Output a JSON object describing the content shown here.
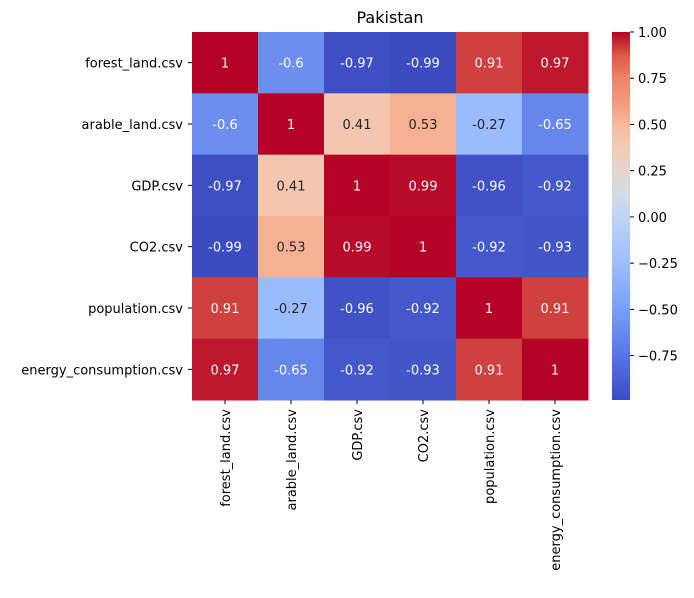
{
  "chart_data": {
    "type": "heatmap",
    "title": "Pakistan",
    "rows": [
      "forest_land.csv",
      "arable_land.csv",
      "GDP.csv",
      "CO2.csv",
      "population.csv",
      "energy_consumption.csv"
    ],
    "columns": [
      "forest_land.csv",
      "arable_land.csv",
      "GDP.csv",
      "CO2.csv",
      "population.csv",
      "energy_consumption.csv"
    ],
    "values": [
      [
        1,
        -0.6,
        -0.97,
        -0.99,
        0.91,
        0.97
      ],
      [
        -0.6,
        1,
        0.41,
        0.53,
        -0.27,
        -0.65
      ],
      [
        -0.97,
        0.41,
        1,
        0.99,
        -0.96,
        -0.92
      ],
      [
        -0.99,
        0.53,
        0.99,
        1,
        -0.92,
        -0.93
      ],
      [
        0.91,
        -0.27,
        -0.96,
        -0.92,
        1,
        0.91
      ],
      [
        0.97,
        -0.65,
        -0.92,
        -0.93,
        0.91,
        1
      ]
    ],
    "annotations": [
      [
        "1",
        "-0.6",
        "-0.97",
        "-0.99",
        "0.91",
        "0.97"
      ],
      [
        "-0.6",
        "1",
        "0.41",
        "0.53",
        "-0.27",
        "-0.65"
      ],
      [
        "-0.97",
        "0.41",
        "1",
        "0.99",
        "-0.96",
        "-0.92"
      ],
      [
        "-0.99",
        "0.53",
        "0.99",
        "1",
        "-0.92",
        "-0.93"
      ],
      [
        "0.91",
        "-0.27",
        "-0.96",
        "-0.92",
        "1",
        "0.91"
      ],
      [
        "0.97",
        "-0.65",
        "-0.92",
        "-0.93",
        "0.91",
        "1"
      ]
    ],
    "colormap": "coolwarm",
    "colorbar": {
      "vmin": -0.99,
      "vmax": 1.0,
      "ticks": [
        1.0,
        0.75,
        0.5,
        0.25,
        0.0,
        -0.25,
        -0.5,
        -0.75
      ],
      "tick_labels": [
        "1.00",
        "0.75",
        "0.50",
        "0.25",
        "0.00",
        "−0.25",
        "−0.50",
        "−0.75"
      ]
    },
    "grid": false
  }
}
